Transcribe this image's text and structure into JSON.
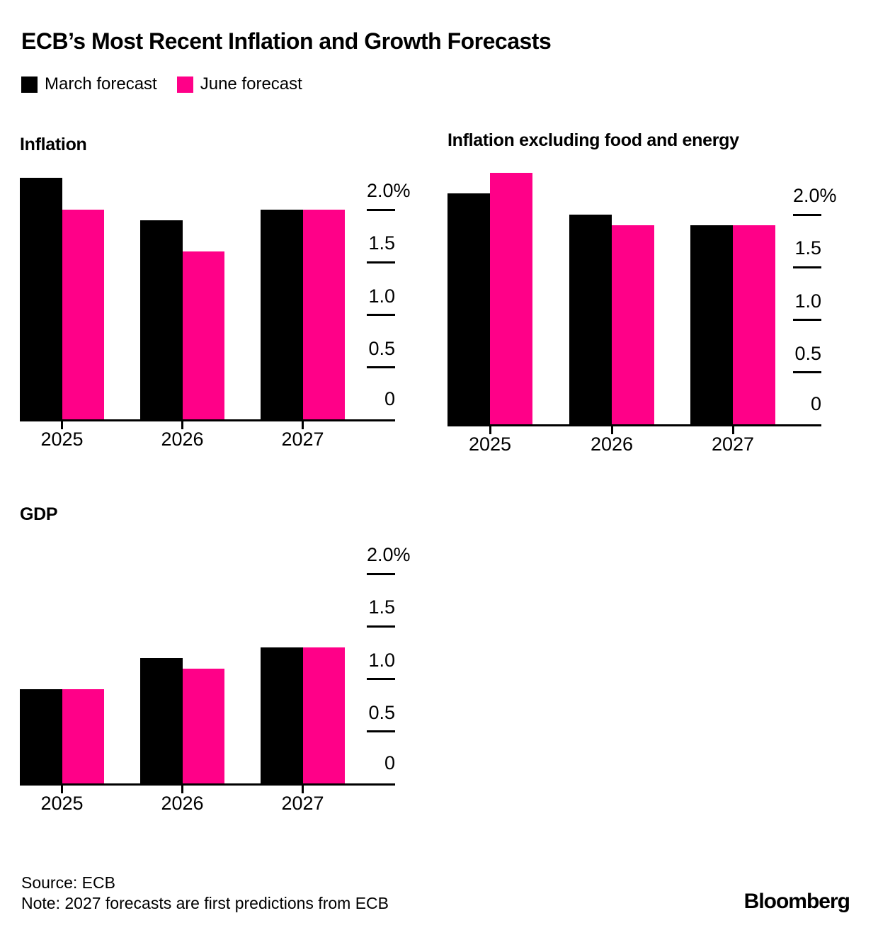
{
  "header": {
    "title": "ECB’s Most Recent Inflation and Growth Forecasts",
    "legend": [
      {
        "label": "March forecast",
        "color": "#000000"
      },
      {
        "label": "June forecast",
        "color": "#ff0088"
      }
    ]
  },
  "chart_data": [
    {
      "type": "bar",
      "title": "Inflation",
      "categories": [
        "2025",
        "2026",
        "2027"
      ],
      "series": [
        {
          "name": "March forecast",
          "color": "#000000",
          "values": [
            2.3,
            1.9,
            2.0
          ]
        },
        {
          "name": "June forecast",
          "color": "#ff0088",
          "values": [
            2.0,
            1.6,
            2.0
          ]
        }
      ],
      "unit": "%",
      "ylim": [
        0,
        2.0
      ],
      "yticks": [
        {
          "value": 2.0,
          "label": "2.0%"
        },
        {
          "value": 1.5,
          "label": "1.5"
        },
        {
          "value": 1.0,
          "label": "1.0"
        },
        {
          "value": 0.5,
          "label": "0.5"
        },
        {
          "value": 0,
          "label": "0"
        }
      ],
      "grid": false,
      "axis_side": "right",
      "legend_position": "top"
    },
    {
      "type": "bar",
      "title": "Inflation excluding food and energy",
      "categories": [
        "2025",
        "2026",
        "2027"
      ],
      "series": [
        {
          "name": "March forecast",
          "color": "#000000",
          "values": [
            2.2,
            2.0,
            1.9
          ]
        },
        {
          "name": "June forecast",
          "color": "#ff0088",
          "values": [
            2.4,
            1.9,
            1.9
          ]
        }
      ],
      "unit": "%",
      "ylim": [
        0,
        2.0
      ],
      "yticks": [
        {
          "value": 2.0,
          "label": "2.0%"
        },
        {
          "value": 1.5,
          "label": "1.5"
        },
        {
          "value": 1.0,
          "label": "1.0"
        },
        {
          "value": 0.5,
          "label": "0.5"
        },
        {
          "value": 0,
          "label": "0"
        }
      ],
      "grid": false,
      "axis_side": "right",
      "legend_position": "top"
    },
    {
      "type": "bar",
      "title": "GDP",
      "categories": [
        "2025",
        "2026",
        "2027"
      ],
      "series": [
        {
          "name": "March forecast",
          "color": "#000000",
          "values": [
            0.9,
            1.2,
            1.3
          ]
        },
        {
          "name": "June forecast",
          "color": "#ff0088",
          "values": [
            0.9,
            1.1,
            1.3
          ]
        }
      ],
      "unit": "%",
      "ylim": [
        0,
        2.0
      ],
      "yticks": [
        {
          "value": 2.0,
          "label": "2.0%"
        },
        {
          "value": 1.5,
          "label": "1.5"
        },
        {
          "value": 1.0,
          "label": "1.0"
        },
        {
          "value": 0.5,
          "label": "0.5"
        },
        {
          "value": 0,
          "label": "0"
        }
      ],
      "grid": false,
      "axis_side": "right",
      "legend_position": "top"
    }
  ],
  "footer": {
    "source": "Source: ECB",
    "note": "Note: 2027 forecasts are first predictions from ECB",
    "brand": "Bloomberg"
  }
}
